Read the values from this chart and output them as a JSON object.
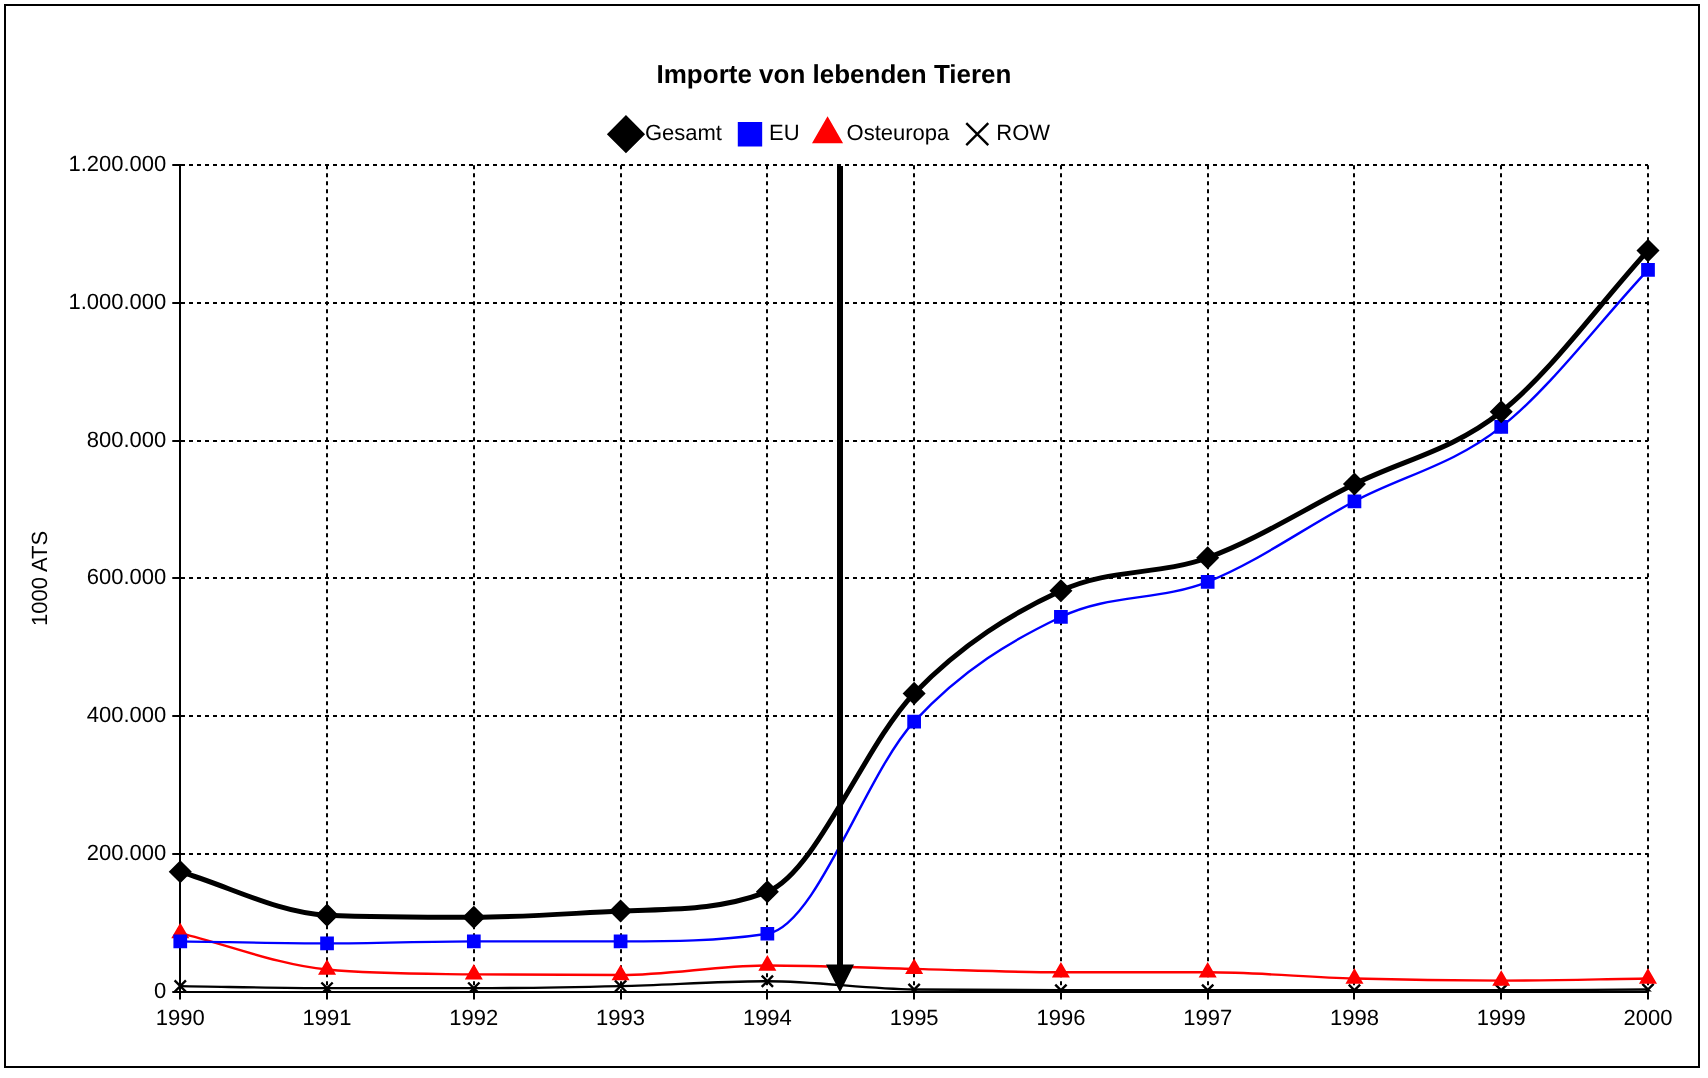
{
  "chart_data": {
    "type": "line",
    "title": "Importe von lebenden Tieren",
    "ylabel": "1000 ATS",
    "categories": [
      "1990",
      "1991",
      "1992",
      "1993",
      "1994",
      "1995",
      "1996",
      "1997",
      "1998",
      "1999",
      "2000"
    ],
    "series": [
      {
        "name": "Gesamt",
        "color": "#000000",
        "marker": "diamond",
        "values": [
          174000,
          111000,
          108000,
          117000,
          145000,
          433000,
          582000,
          630000,
          737000,
          842000,
          1076000
        ]
      },
      {
        "name": "EU",
        "color": "#0000ff",
        "marker": "square",
        "values": [
          73000,
          70000,
          73000,
          73000,
          84000,
          392000,
          544000,
          595000,
          712000,
          820000,
          1048000
        ]
      },
      {
        "name": "Osteuropa",
        "color": "#ff0000",
        "marker": "triangle",
        "values": [
          85000,
          32000,
          25000,
          24000,
          38000,
          33000,
          28000,
          28000,
          19000,
          16000,
          19000
        ]
      },
      {
        "name": "ROW",
        "color": "#000000",
        "marker": "cross",
        "values": [
          8000,
          5000,
          5000,
          8000,
          15000,
          3000,
          2000,
          2000,
          2000,
          2000,
          3000
        ]
      }
    ],
    "ylim": [
      0,
      1200000
    ],
    "yticks": [
      {
        "value": 0,
        "label": "0"
      },
      {
        "value": 200000,
        "label": "200.000"
      },
      {
        "value": 400000,
        "label": "400.000"
      },
      {
        "value": 600000,
        "label": "600.000"
      },
      {
        "value": 800000,
        "label": "800.000"
      },
      {
        "value": 1000000,
        "label": "1.000.000"
      },
      {
        "value": 1200000,
        "label": "1.200.000"
      }
    ],
    "grid": true,
    "legend": "top"
  }
}
